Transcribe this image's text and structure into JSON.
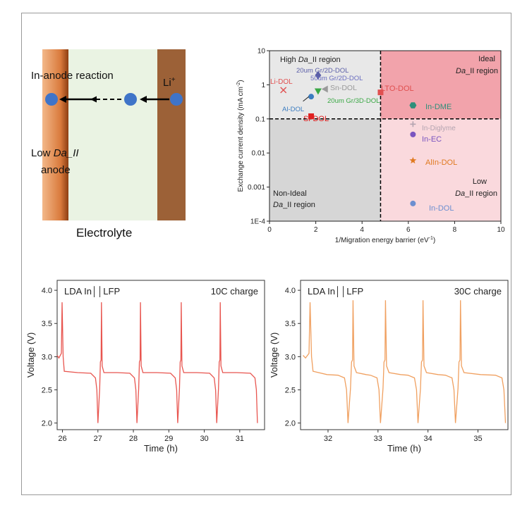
{
  "schematic": {
    "reaction_label": "In-anode reaction",
    "ion_label": "Li",
    "ion_charge": "+",
    "anode_label_line1": "Low ",
    "anode_label_italic": "Da_II",
    "anode_label_line2": "anode",
    "electrolyte_label": "Electrolyte",
    "colors": {
      "anode_left": "#d9803f",
      "electrolyte": "#eaf3e3",
      "anode_right": "#9c6137",
      "ion": "#3f74c8"
    }
  },
  "chart_data": [
    {
      "type": "scatter",
      "xlabel": "1/Migration energy barrier (eV",
      "xlabel_sup": "-1",
      "xlabel_end": ")",
      "ylabel": "Exchange current density (mA cm",
      "ylabel_sup": "-2",
      "ylabel_end": ")",
      "xlim": [
        0,
        10
      ],
      "ylim_log": [
        0.0001,
        10
      ],
      "x_ticks": [
        "0",
        "2",
        "4",
        "6",
        "8",
        "10"
      ],
      "y_ticks": [
        "1E-4",
        "0.001",
        "0.01",
        "0.1",
        "1",
        "10"
      ],
      "threshold_x": 4.8,
      "threshold_y": 0.1,
      "regions": {
        "high": {
          "line1": "High ",
          "italic": "Da",
          "rest": "_II region"
        },
        "ideal": {
          "line1": "Ideal",
          "italic": "Da",
          "rest": "_II region"
        },
        "nonideal": {
          "line1": "Non-Ideal",
          "italic": "Da",
          "rest": "_II region"
        },
        "low": {
          "line1": "Low",
          "italic": "Da",
          "rest": "_II region"
        }
      },
      "region_colors": {
        "high": "#e8e8e8",
        "ideal": "#f2a3ab",
        "nonideal": "#d6d6d6",
        "low": "#fad9dd"
      },
      "points": [
        {
          "name": "Li-DOL",
          "x": 0.6,
          "y": 0.7,
          "color": "#e05050",
          "marker": "x"
        },
        {
          "name": "20um Gr/2D-DOL",
          "x": 2.1,
          "y": 1.9,
          "color": "#5b5fa8",
          "marker": "diamond"
        },
        {
          "name": "50um Gr/2D-DOL",
          "x": 2.1,
          "y": 1.9,
          "color": "#6a6ec0",
          "marker": "none"
        },
        {
          "name": "Sn-DOL",
          "x": 2.4,
          "y": 0.75,
          "color": "#9a9a9a",
          "marker": "triangle-left"
        },
        {
          "name": "20um Gr/3D-DOL",
          "x": 2.1,
          "y": 0.65,
          "color": "#3aa845",
          "marker": "triangle-down"
        },
        {
          "name": "LTO-DOL",
          "x": 4.8,
          "y": 0.6,
          "color": "#e05050",
          "marker": "square"
        },
        {
          "name": "Al-DOL",
          "x": 1.8,
          "y": 0.45,
          "color": "#3b7cc0",
          "marker": "circle"
        },
        {
          "name": "Si-DOL",
          "x": 1.8,
          "y": 0.12,
          "color": "#e02020",
          "marker": "square"
        },
        {
          "name": "In-DME",
          "x": 6.2,
          "y": 0.25,
          "color": "#2f8f7a",
          "marker": "hexagon"
        },
        {
          "name": "In-Diglyme",
          "x": 6.2,
          "y": 0.07,
          "color": "#b4a4b0",
          "marker": "plus"
        },
        {
          "name": "In-EC",
          "x": 6.2,
          "y": 0.035,
          "color": "#7a55c0",
          "marker": "circle"
        },
        {
          "name": "AlIn-DOL",
          "x": 6.2,
          "y": 0.006,
          "color": "#e07a20",
          "marker": "star"
        },
        {
          "name": "In-DOL",
          "x": 6.2,
          "y": 0.00033,
          "color": "#6d8fd0",
          "marker": "circle"
        }
      ]
    },
    {
      "type": "line",
      "title": "LDA In││LFP",
      "annotation": "10C charge",
      "xlabel": "Time (h)",
      "ylabel": "Voltage (V)",
      "xlim": [
        25.85,
        31.7
      ],
      "ylim": [
        1.9,
        4.15
      ],
      "x_ticks": [
        "26",
        "27",
        "28",
        "29",
        "30",
        "31"
      ],
      "y_ticks": [
        "2.0",
        "2.5",
        "3.0",
        "3.5",
        "4.0"
      ],
      "color": "#e8554f",
      "cycle_starts": [
        25.85,
        27.05,
        28.15,
        29.3,
        30.4
      ],
      "cycle_ends": [
        27.0,
        28.1,
        29.25,
        30.35,
        31.5
      ],
      "peak_voltage": 3.82,
      "plateau_voltage": 2.75,
      "cutoff_voltage": 2.0
    },
    {
      "type": "line",
      "title": "LDA In││LFP",
      "annotation": "30C charge",
      "xlabel": "Time (h)",
      "ylabel": "Voltage (V)",
      "xlim": [
        31.45,
        35.6
      ],
      "ylim": [
        1.9,
        4.15
      ],
      "x_ticks": [
        "32",
        "33",
        "34",
        "35"
      ],
      "y_ticks": [
        "2.0",
        "2.5",
        "3.0",
        "3.5",
        "4.0"
      ],
      "color": "#f0a060",
      "cycle_starts": [
        31.5,
        32.45,
        33.1,
        33.85,
        34.6
      ],
      "cycle_ends": [
        32.4,
        33.05,
        33.8,
        34.55,
        35.55
      ],
      "peak_voltage": 3.85,
      "plateau_voltage": 2.72,
      "cutoff_voltage": 2.0
    }
  ]
}
